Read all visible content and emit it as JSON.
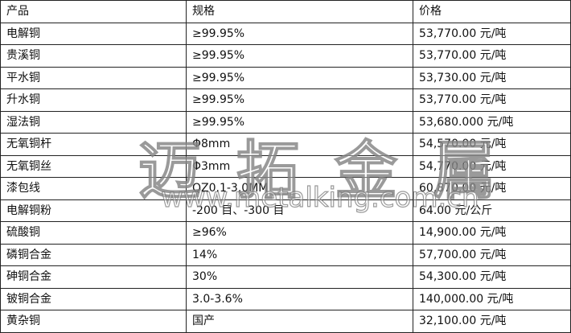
{
  "table": {
    "headers": [
      "产品",
      "规格",
      "价格"
    ],
    "rows": [
      [
        "电解铜",
        "≥99.95%",
        "53,770.00 元/吨"
      ],
      [
        "贵溪铜",
        "≥99.95%",
        "53,770.00 元/吨"
      ],
      [
        "平水铜",
        "≥99.95%",
        "53,730.00 元/吨"
      ],
      [
        "升水铜",
        "≥99.95%",
        "53,770.00 元/吨"
      ],
      [
        "湿法铜",
        "≥99.95%",
        "53,680.000 元/吨"
      ],
      [
        "无氧铜杆",
        "Φ8mm",
        "54,570.00 元/吨"
      ],
      [
        "无氧铜丝",
        "Φ3mm",
        "54,770.00 元/吨"
      ],
      [
        "漆包线",
        "QZ0.1-3.0MM",
        "60,870.00 元/吨"
      ],
      [
        "电解铜粉",
        "-200 目、-300 目",
        "64.00 元/公斤"
      ],
      [
        "硫酸铜",
        "≥96%",
        "14,900.00 元/吨"
      ],
      [
        "磷铜合金",
        "14%",
        "57,700.00 元/吨"
      ],
      [
        "砷铜合金",
        "30%",
        "54,300.00 元/吨"
      ],
      [
        "铍铜合金",
        "3.0-3.6%",
        "140,000.00 元/吨"
      ],
      [
        "黄杂铜",
        "国产",
        "32,100.00 元/吨"
      ]
    ]
  },
  "watermark": {
    "name": "迈拓金属",
    "url": "www.metalking.com.cn"
  }
}
